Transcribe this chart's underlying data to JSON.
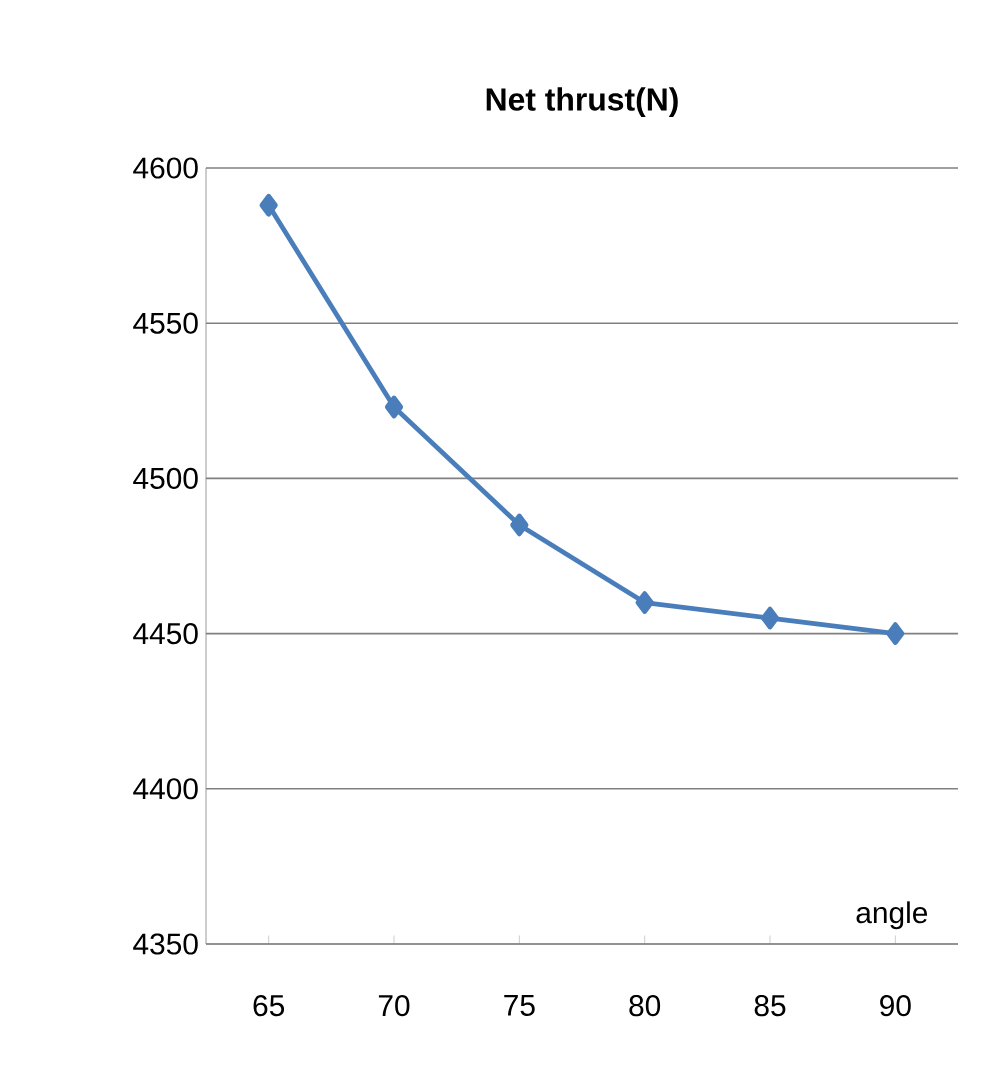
{
  "chart_data": {
    "type": "line",
    "title": "Net thrust(N)",
    "xlabel": "angle",
    "categories": [
      "65",
      "70",
      "75",
      "80",
      "85",
      "90"
    ],
    "series": [
      {
        "color": "#4a7ebb",
        "values": [
          4588,
          4523,
          4485,
          4460,
          4455,
          4450
        ]
      }
    ],
    "ylim": [
      4350,
      4600
    ],
    "yticks": [
      4350,
      4400,
      4450,
      4500,
      4550,
      4600
    ],
    "grid": "y",
    "marker": "diamond",
    "line_style": "solid"
  }
}
